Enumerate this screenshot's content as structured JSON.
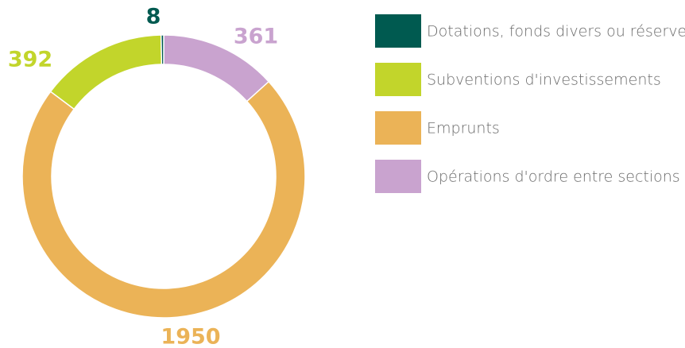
{
  "chart_data": {
    "type": "donut",
    "categories": [
      "Dotations, fonds divers ou réserves",
      "Subventions d'investissements",
      "Emprunts",
      "Opérations d'ordre entre sections"
    ],
    "values": [
      8,
      392,
      1950,
      361
    ],
    "colors": [
      "#005a50",
      "#c2d52b",
      "#ebb357",
      "#c9a3cf"
    ]
  }
}
